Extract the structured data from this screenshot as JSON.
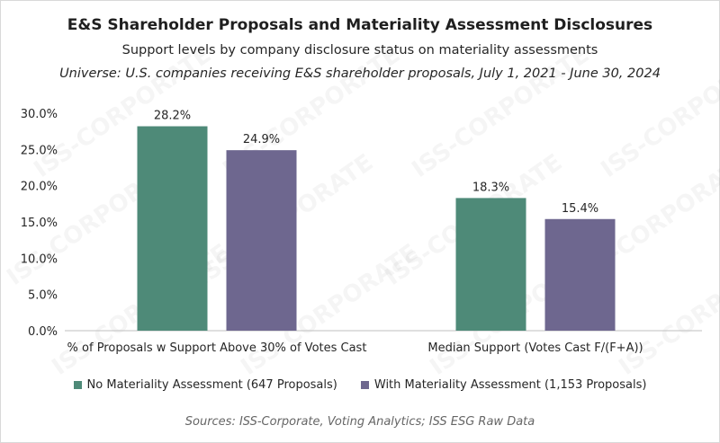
{
  "watermark_text": "ISS-CORPORATE",
  "chart_data": {
    "type": "bar",
    "title": "E&S Shareholder Proposals and Materiality Assessment Disclosures",
    "subtitle": "Support levels by company disclosure status on materiality assessments",
    "universe": "Universe: U.S. companies receiving E&S shareholder proposals, July 1, 2021 - June 30, 2024",
    "categories": [
      "% of Proposals w Support Above 30% of Votes Cast",
      "Median Support (Votes Cast F/(F+A))"
    ],
    "series": [
      {
        "name": "No Materiality Assessment (647 Proposals)",
        "color": "#4e8a78",
        "values": [
          28.2,
          18.3
        ],
        "labels": [
          "28.2%",
          "18.3%"
        ]
      },
      {
        "name": "With Materiality Assessment (1,153 Proposals)",
        "color": "#6e678f",
        "values": [
          24.9,
          15.4
        ],
        "labels": [
          "24.9%",
          "15.4%"
        ]
      }
    ],
    "ylim": [
      0,
      30
    ],
    "yticks": [
      0,
      5,
      10,
      15,
      20,
      25,
      30
    ],
    "ytick_labels": [
      "0.0%",
      "5.0%",
      "10.0%",
      "15.0%",
      "20.0%",
      "25.0%",
      "30.0%"
    ],
    "xlabel": "",
    "ylabel": "",
    "legend_position": "bottom",
    "source": "Sources: ISS-Corporate, Voting Analytics; ISS ESG Raw Data"
  }
}
